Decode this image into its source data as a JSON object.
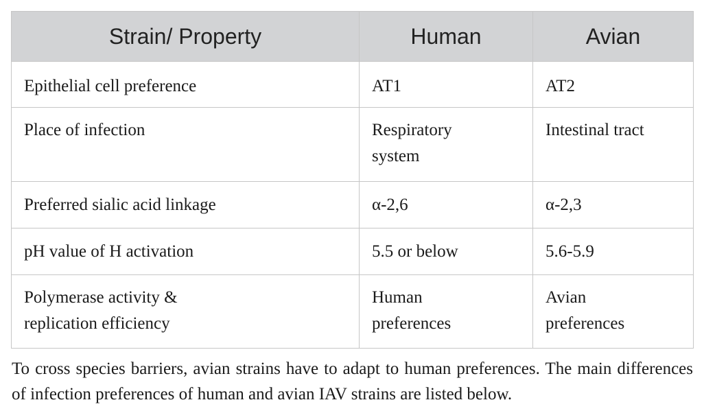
{
  "table": {
    "headers": [
      "Strain/ Property",
      "Human",
      "Avian"
    ],
    "rows": [
      [
        "Epithelial cell preference",
        "AT1",
        "AT2"
      ],
      [
        "Place of infection",
        "Respiratory\nsystem",
        "Intestinal tract"
      ],
      [
        "Preferred sialic acid linkage",
        "α-2,6",
        "α-2,3"
      ],
      [
        "pH value of H activation",
        "5.5 or below",
        "5.6-5.9"
      ],
      [
        "Polymerase activity &\nreplication efficiency",
        "Human\npreferences",
        "Avian\npreferences"
      ]
    ]
  },
  "caption": "To cross species barriers, avian strains have to adapt to human preferences. The main differences of infection preferences of human and avian IAV strains are listed below."
}
